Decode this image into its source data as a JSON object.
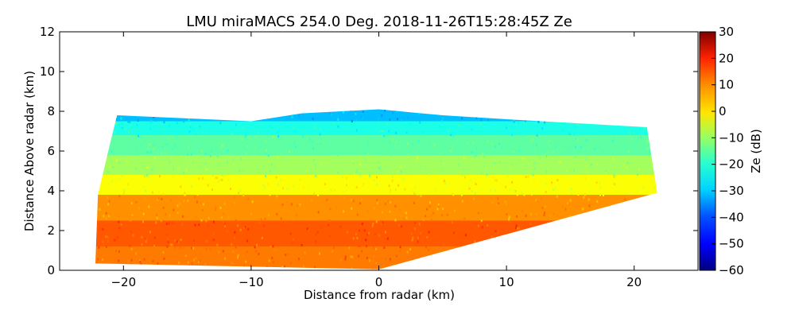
{
  "chart_data": {
    "type": "heatmap",
    "title": "LMU miraMACS 254.0 Deg. 2018-11-26T15:28:45Z  Ze",
    "xlabel": "Distance from radar (km)",
    "ylabel": "Distance Above radar  (km)",
    "xlim": [
      -25,
      25
    ],
    "ylim": [
      0,
      12
    ],
    "x_ticks": [
      -20,
      -10,
      0,
      10,
      20
    ],
    "x_tick_labels": [
      "−20",
      "−10",
      "0",
      "10",
      "20"
    ],
    "y_ticks": [
      0,
      2,
      4,
      6,
      8,
      10,
      12
    ],
    "y_tick_labels": [
      "0",
      "2",
      "4",
      "6",
      "8",
      "10",
      "12"
    ],
    "colorbar": {
      "label": "Ze (dB)",
      "range": [
        -60,
        30
      ],
      "ticks": [
        30,
        20,
        10,
        0,
        -10,
        -20,
        -30,
        -40,
        -50,
        -60
      ],
      "tick_labels": [
        "30",
        "20",
        "10",
        "0",
        "−10",
        "−20",
        "−30",
        "−40",
        "−50",
        "−60"
      ],
      "colormap": "jet"
    },
    "echo_region": {
      "description_points_km": [
        [
          -22.2,
          0.35
        ],
        [
          -22.0,
          3.8
        ],
        [
          -21.0,
          6.5
        ],
        [
          -20.5,
          7.8
        ],
        [
          -10,
          7.5
        ],
        [
          -6,
          7.9
        ],
        [
          0,
          8.1
        ],
        [
          5,
          7.8
        ],
        [
          10,
          7.6
        ],
        [
          21.0,
          7.2
        ],
        [
          21.8,
          3.9
        ],
        [
          0,
          0.05
        ]
      ],
      "layers": [
        {
          "top_km": 1.2,
          "ze_db": 8
        },
        {
          "top_km": 2.5,
          "ze_db": 11
        },
        {
          "top_km": 3.8,
          "ze_db": 6
        },
        {
          "top_km": 4.8,
          "ze_db": -4
        },
        {
          "top_km": 5.8,
          "ze_db": -12
        },
        {
          "top_km": 6.8,
          "ze_db": -18
        },
        {
          "top_km": 7.5,
          "ze_db": -24
        },
        {
          "top_km": 8.2,
          "ze_db": -32
        }
      ]
    }
  }
}
